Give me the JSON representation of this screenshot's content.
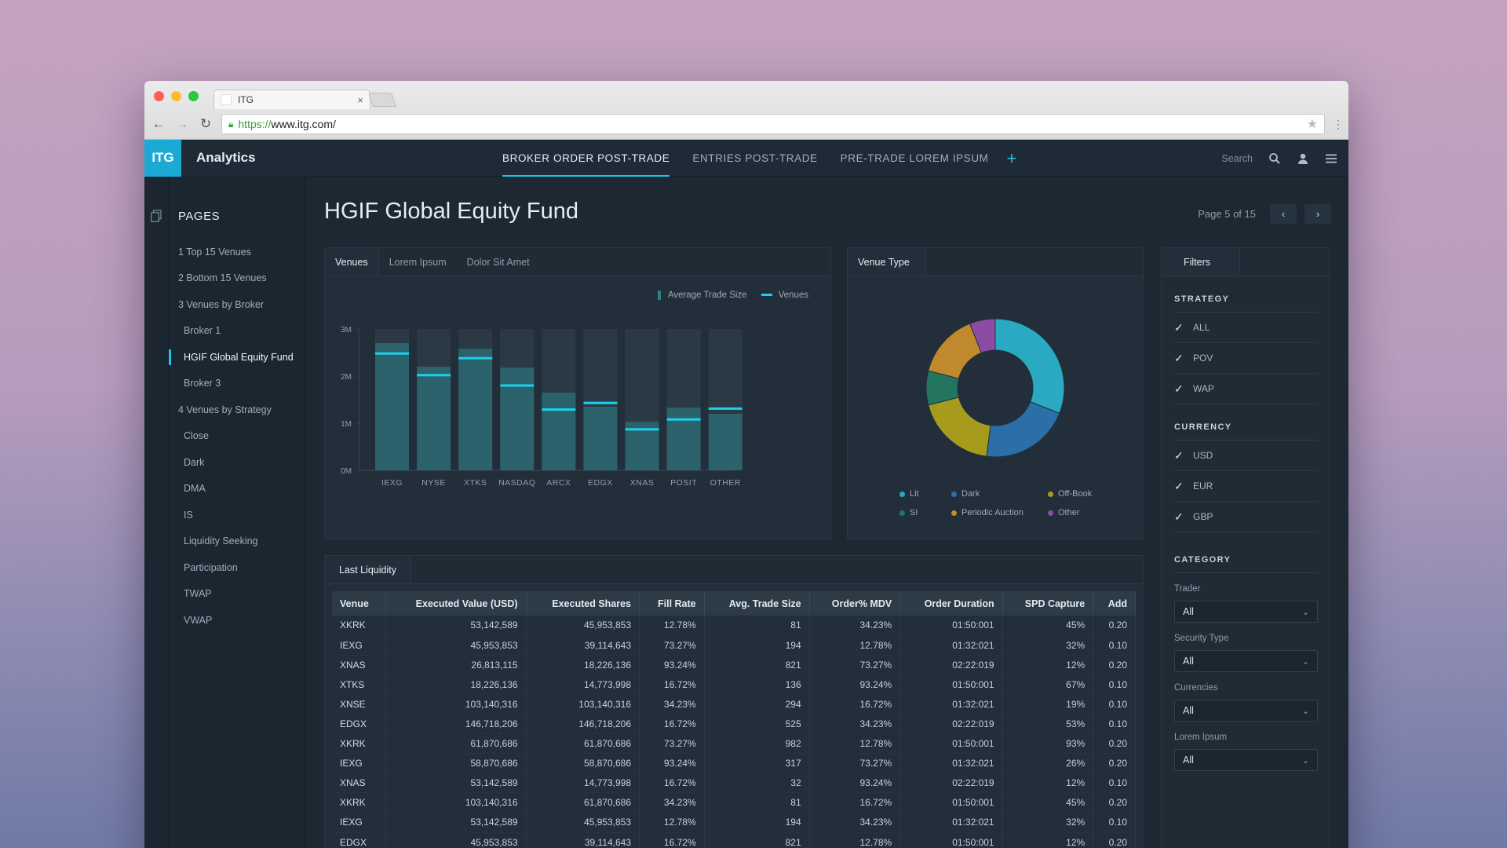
{
  "browser": {
    "tab_title": "ITG",
    "url_scheme": "https://",
    "url_rest": "www.itg.com/"
  },
  "app": {
    "logo": "ITG",
    "name": "Analytics",
    "nav_tabs": [
      {
        "label": "BROKER ORDER POST-TRADE",
        "active": true
      },
      {
        "label": "ENTRIES POST-TRADE",
        "active": false
      },
      {
        "label": "PRE-TRADE LOREM IPSUM",
        "active": false
      }
    ],
    "add_tab_icon": "plus-icon",
    "search_label": "Search",
    "accent": "#19c6e6"
  },
  "sidebar": {
    "title": "PAGES",
    "items": [
      {
        "label": "1 Top 15 Venues",
        "sub": false
      },
      {
        "label": "2 Bottom 15 Venues",
        "sub": false
      },
      {
        "label": "3 Venues by Broker",
        "sub": false
      },
      {
        "label": "Broker 1",
        "sub": true
      },
      {
        "label": "HGIF Global Equity Fund",
        "sub": true,
        "active": true
      },
      {
        "label": "Broker 3",
        "sub": true
      },
      {
        "label": "4 Venues by Strategy",
        "sub": false
      },
      {
        "label": "Close",
        "sub": true
      },
      {
        "label": "Dark",
        "sub": true
      },
      {
        "label": "DMA",
        "sub": true
      },
      {
        "label": "IS",
        "sub": true
      },
      {
        "label": "Liquidity Seeking",
        "sub": true
      },
      {
        "label": "Participation",
        "sub": true
      },
      {
        "label": "TWAP",
        "sub": true
      },
      {
        "label": "VWAP",
        "sub": true
      }
    ]
  },
  "main": {
    "title": "HGIF Global Equity Fund",
    "pager": "Page 5 of 15"
  },
  "venues_panel": {
    "tabs": [
      "Venues",
      "Lorem Ipsum",
      "Dolor Sit Amet"
    ],
    "legend": {
      "bar": "Average Trade Size",
      "line": "Venues"
    }
  },
  "venue_type_panel": {
    "tab": "Venue Type"
  },
  "filters": {
    "tab": "Filters",
    "strategy": {
      "title": "STRATEGY",
      "options": [
        "ALL",
        "POV",
        "WAP"
      ]
    },
    "currency": {
      "title": "CURRENCY",
      "options": [
        "USD",
        "EUR",
        "GBP"
      ]
    },
    "category": {
      "title": "CATEGORY",
      "selects": [
        {
          "label": "Trader",
          "value": "All"
        },
        {
          "label": "Security Type",
          "value": "All"
        },
        {
          "label": "Currencies",
          "value": "All"
        },
        {
          "label": "Lorem Ipsum",
          "value": "All"
        }
      ]
    }
  },
  "liquidity": {
    "tab": "Last Liquidity",
    "columns": [
      "Venue",
      "Executed Value (USD)",
      "Executed Shares",
      "Fill Rate",
      "Avg. Trade Size",
      "Order% MDV",
      "Order Duration",
      "SPD Capture",
      "Add"
    ],
    "rows": [
      [
        "XKRK",
        "53,142,589",
        "45,953,853",
        "12.78%",
        "81",
        "34.23%",
        "01:50:001",
        "45%",
        "0.20"
      ],
      [
        "IEXG",
        "45,953,853",
        "39,114,643",
        "73.27%",
        "194",
        "12.78%",
        "01:32:021",
        "32%",
        "0.10"
      ],
      [
        "XNAS",
        "26,813,115",
        "18,226,136",
        "93.24%",
        "821",
        "73.27%",
        "02:22:019",
        "12%",
        "0.20"
      ],
      [
        "XTKS",
        "18,226,136",
        "14,773,998",
        "16.72%",
        "136",
        "93.24%",
        "01:50:001",
        "67%",
        "0.10"
      ],
      [
        "XNSE",
        "103,140,316",
        "103,140,316",
        "34.23%",
        "294",
        "16.72%",
        "01:32:021",
        "19%",
        "0.10"
      ],
      [
        "EDGX",
        "146,718,206",
        "146,718,206",
        "16.72%",
        "525",
        "34.23%",
        "02:22:019",
        "53%",
        "0.10"
      ],
      [
        "XKRK",
        "61,870,686",
        "61,870,686",
        "73.27%",
        "982",
        "12.78%",
        "01:50:001",
        "93%",
        "0.20"
      ],
      [
        "IEXG",
        "58,870,686",
        "58,870,686",
        "93.24%",
        "317",
        "73.27%",
        "01:32:021",
        "26%",
        "0.20"
      ],
      [
        "XNAS",
        "53,142,589",
        "14,773,998",
        "16.72%",
        "32",
        "93.24%",
        "02:22:019",
        "12%",
        "0.10"
      ],
      [
        "XKRK",
        "103,140,316",
        "61,870,686",
        "34.23%",
        "81",
        "16.72%",
        "01:50:001",
        "45%",
        "0.20"
      ],
      [
        "IEXG",
        "53,142,589",
        "45,953,853",
        "12.78%",
        "194",
        "34.23%",
        "01:32:021",
        "32%",
        "0.10"
      ],
      [
        "EDGX",
        "45,953,853",
        "39,114,643",
        "16.72%",
        "821",
        "12.78%",
        "01:50:001",
        "12%",
        "0.20"
      ]
    ]
  },
  "chart_data": [
    {
      "type": "bar",
      "categories": [
        "IEXG",
        "NYSE",
        "XTKS",
        "NASDAQ",
        "ARCX",
        "EDGX",
        "XNAS",
        "POSIT",
        "OTHER"
      ],
      "series": [
        {
          "name": "Average Trade Size",
          "values": [
            2700000,
            2200000,
            2580000,
            2180000,
            1650000,
            1350000,
            1030000,
            1330000,
            1200000
          ],
          "color": "#2b6a72"
        },
        {
          "name": "Venues",
          "values": [
            2480000,
            2020000,
            2380000,
            1800000,
            1290000,
            1430000,
            870000,
            1080000,
            1310000
          ],
          "color": "#19d3ec"
        }
      ],
      "background_max": 3000000,
      "yticks": [
        "0M",
        "1M",
        "2M",
        "3M"
      ],
      "ylim": [
        0,
        3000000
      ],
      "grid": false,
      "legend": "top-right"
    },
    {
      "type": "pie",
      "donut": true,
      "slices": [
        {
          "label": "Lit",
          "value": 31,
          "color": "#2aa9c2"
        },
        {
          "label": "Dark",
          "value": 21,
          "color": "#2b6fa8"
        },
        {
          "label": "Off-Book",
          "value": 19,
          "color": "#a69b1c"
        },
        {
          "label": "SI",
          "value": 8,
          "color": "#23755f"
        },
        {
          "label": "Periodic Auction",
          "value": 15,
          "color": "#c08a2c"
        },
        {
          "label": "Other",
          "value": 6,
          "color": "#8b4da3"
        }
      ],
      "legend": "bottom"
    }
  ]
}
